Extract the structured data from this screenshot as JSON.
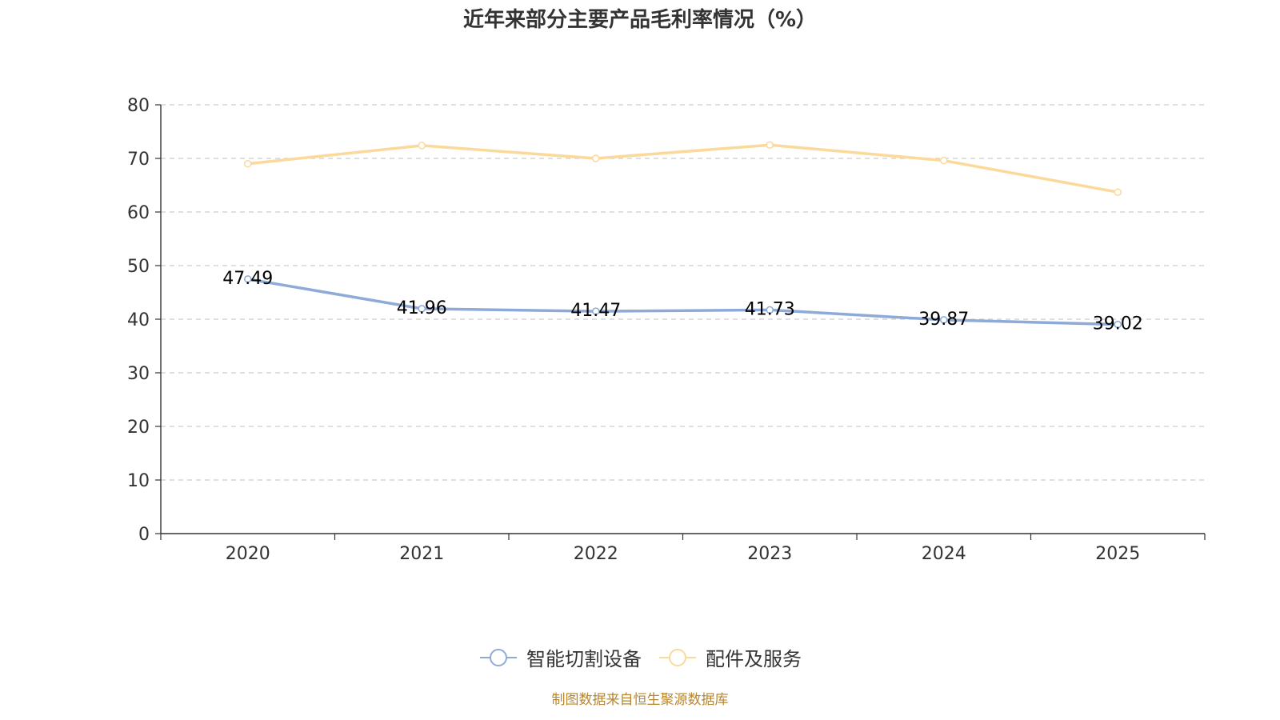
{
  "chart_data": {
    "type": "line",
    "title": "近年来部分主要产品毛利率情况（%）",
    "categories": [
      "2020",
      "2021",
      "2022",
      "2023",
      "2024",
      "2025"
    ],
    "ylim": [
      0,
      80
    ],
    "yticks": [
      0,
      10,
      20,
      30,
      40,
      50,
      60,
      70,
      80
    ],
    "xlabel": "",
    "ylabel": "",
    "grid": "horizontal dashed",
    "legend_position": "bottom-center",
    "series": [
      {
        "name": "智能切割设备",
        "color": "#8eaad8",
        "values": [
          47.49,
          41.96,
          41.47,
          41.73,
          39.87,
          39.02
        ],
        "labels": [
          "47.49",
          "41.96",
          "41.47",
          "41.73",
          "39.87",
          "39.02"
        ],
        "show_labels": true
      },
      {
        "name": "配件及服务",
        "color": "#fad99a",
        "values": [
          69.0,
          72.4,
          70.0,
          72.5,
          69.6,
          63.7
        ],
        "show_labels": false
      }
    ]
  },
  "source_note": "制图数据来自恒生聚源数据库"
}
